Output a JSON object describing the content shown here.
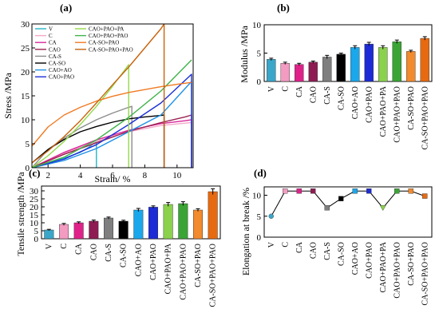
{
  "chart_data": [
    {
      "panel": "(a)",
      "type": "line",
      "xlabel": "Strain/ %",
      "ylabel": "Stress /MPa",
      "xlim": [
        1,
        11
      ],
      "ylim": [
        0,
        30
      ],
      "xticks": [
        2,
        4,
        6,
        8,
        10
      ],
      "yticks": [
        0,
        5,
        10,
        15,
        20,
        25,
        30
      ],
      "legend_placement": "top",
      "series": [
        {
          "name": "V",
          "color": "#25b5c4",
          "x": [
            1,
            2,
            3,
            4,
            4.5,
            5,
            5,
            5
          ],
          "y": [
            0,
            1.0,
            2.0,
            3.2,
            4.2,
            5.5,
            3,
            0
          ]
        },
        {
          "name": "C",
          "color": "#f4a8c8",
          "x": [
            1,
            3,
            5,
            7,
            9,
            10.5,
            10.9,
            10.9
          ],
          "y": [
            0,
            3.0,
            5.5,
            7.5,
            8.8,
            9.3,
            9.4,
            0
          ]
        },
        {
          "name": "CA",
          "color": "#d9289a",
          "x": [
            1,
            3,
            5,
            7,
            9,
            10.5,
            10.9,
            10.9
          ],
          "y": [
            0,
            3.2,
            5.8,
            7.8,
            9.2,
            9.8,
            10.0,
            0
          ]
        },
        {
          "name": "CAO",
          "color": "#9b2352",
          "x": [
            1,
            3,
            5,
            7,
            9,
            10.5,
            10.9,
            10.9
          ],
          "y": [
            0,
            2.8,
            5.2,
            7.6,
            9.4,
            10.6,
            11.0,
            0
          ]
        },
        {
          "name": "CA-S",
          "color": "#8c8c8c",
          "x": [
            1,
            2,
            3,
            4,
            5,
            6,
            7,
            7.2,
            7.2
          ],
          "y": [
            0,
            3.8,
            6.2,
            8.3,
            10.0,
            11.4,
            12.6,
            12.8,
            0
          ]
        },
        {
          "name": "CA-SO",
          "color": "#000000",
          "x": [
            1,
            2,
            3,
            4,
            5,
            6,
            7,
            8,
            9,
            9.2,
            9.2
          ],
          "y": [
            1,
            3.8,
            5.9,
            7.5,
            8.6,
            9.5,
            10.2,
            10.6,
            10.9,
            11.0,
            0
          ]
        },
        {
          "name": "CAO+AO",
          "color": "#1e90e6",
          "x": [
            1,
            3,
            5,
            7,
            9,
            10.9,
            10.9
          ],
          "y": [
            0,
            1.5,
            4.0,
            7.5,
            11.0,
            18.0,
            0
          ]
        },
        {
          "name": "CAO+PAO",
          "color": "#1a2fd8",
          "x": [
            1,
            3,
            5,
            7,
            9,
            10.9,
            10.9
          ],
          "y": [
            0,
            1.8,
            4.8,
            9.0,
            13.5,
            19.5,
            0
          ]
        },
        {
          "name": "CAO+PAO+PA",
          "color": "#93d84a",
          "x": [
            1,
            2,
            3,
            4,
            5,
            6,
            7,
            7,
            7
          ],
          "y": [
            0,
            2.5,
            5.5,
            9.0,
            12.8,
            17.0,
            21.5,
            10,
            0
          ]
        },
        {
          "name": "CAO+PAO+PAO",
          "color": "#3fb24a",
          "x": [
            1,
            3,
            5,
            7,
            9,
            10.9
          ],
          "y": [
            0,
            2.2,
            5.8,
            10.5,
            16.0,
            22.5
          ]
        },
        {
          "name": "CA-SO+PAO",
          "color": "#f07a22",
          "x": [
            1,
            2,
            3,
            4,
            5,
            6,
            7,
            8,
            9,
            10,
            10.9
          ],
          "y": [
            4.5,
            8.5,
            11.0,
            12.6,
            13.9,
            14.9,
            15.7,
            16.3,
            16.9,
            17.4,
            17.8
          ]
        },
        {
          "name": "CA-SO+PAO+PAO",
          "color": "#c8620c",
          "x": [
            1,
            2,
            3,
            4,
            5,
            6,
            7,
            8,
            9,
            9.2,
            9.2
          ],
          "y": [
            1,
            3.5,
            6.5,
            9.8,
            13.5,
            17.3,
            21.0,
            25.0,
            29.0,
            30.0,
            0
          ]
        }
      ]
    },
    {
      "panel": "(b)",
      "type": "bar",
      "ylabel": "Modulus /MPa",
      "ylim": [
        0,
        10
      ],
      "yticks": [
        0,
        5,
        10
      ],
      "categories": [
        "V",
        "C",
        "CA",
        "CAO",
        "CA-S",
        "CA-SO",
        "CAO+AO",
        "CAO+PAO",
        "CAO+PAO+PA",
        "CAO+PAO+PAO",
        "CA-SO+PAO",
        "CA-SO+PAO+PAO"
      ],
      "values": [
        3.9,
        3.2,
        3.0,
        3.4,
        4.3,
        4.8,
        6.0,
        6.6,
        6.0,
        7.0,
        5.3,
        7.6
      ],
      "errors": [
        0.2,
        0.2,
        0.2,
        0.2,
        0.3,
        0.2,
        0.3,
        0.3,
        0.3,
        0.3,
        0.2,
        0.3
      ],
      "colors": [
        "#3aa6c9",
        "#f39bc1",
        "#e0218a",
        "#8e1c53",
        "#7f7f7f",
        "#000000",
        "#1aa7ec",
        "#1c2bd6",
        "#8bd14e",
        "#3aa534",
        "#f28a2e",
        "#e86a10"
      ]
    },
    {
      "panel": "(c)",
      "type": "bar",
      "ylabel": "Tensile strength /MPa",
      "ylim": [
        0,
        33
      ],
      "yticks": [
        0,
        5,
        10,
        15,
        20,
        25,
        30
      ],
      "categories": [
        "V",
        "C",
        "CA",
        "CAO",
        "CA-S",
        "CA-SO",
        "CAO+AO",
        "CAO+PAO",
        "CAO+PAO+PA",
        "CAO+PAO+PAO",
        "CA-SO+PAO",
        "CA-SO+PAO+PAO"
      ],
      "values": [
        5.5,
        9.0,
        10.0,
        11.0,
        13.0,
        11.0,
        18.0,
        19.8,
        21.5,
        22.0,
        18.0,
        29.5
      ],
      "errors": [
        0.4,
        0.6,
        0.6,
        0.7,
        0.6,
        0.6,
        1.0,
        0.8,
        1.2,
        1.2,
        0.8,
        1.8
      ],
      "colors": [
        "#3aa6c9",
        "#f39bc1",
        "#e0218a",
        "#8e1c53",
        "#7f7f7f",
        "#000000",
        "#1aa7ec",
        "#1c2bd6",
        "#8bd14e",
        "#3aa534",
        "#f28a2e",
        "#e86a10"
      ]
    },
    {
      "panel": "(d)",
      "type": "line",
      "ylabel": "Elongation at break /%",
      "ylim": [
        0,
        12
      ],
      "yticks": [
        0,
        5,
        10
      ],
      "categories": [
        "V",
        "C",
        "CA",
        "CAO",
        "CA-S",
        "CA-SO",
        "CAO+AO",
        "CAO+PAO",
        "CAO+PAO+PA",
        "CAO+PAO+PAO",
        "CA-SO+PAO",
        "CA-SO+PAO+PAO"
      ],
      "values": [
        5.0,
        11.0,
        11.0,
        11.0,
        7.0,
        9.2,
        11.0,
        11.0,
        7.0,
        11.0,
        11.0,
        9.8
      ],
      "errors": [
        0.2,
        0.4,
        0.4,
        0.4,
        0.3,
        0.4,
        0.4,
        0.4,
        0.3,
        0.4,
        0.4,
        0.4
      ],
      "markers": [
        "circle",
        "square",
        "square",
        "square",
        "square",
        "square",
        "square",
        "square",
        "triangle-down",
        "square",
        "square",
        "square"
      ],
      "colors": [
        "#3aa6c9",
        "#f39bc1",
        "#e0218a",
        "#8e1c53",
        "#7f7f7f",
        "#000000",
        "#1aa7ec",
        "#1c2bd6",
        "#8bd14e",
        "#3aa534",
        "#f28a2e",
        "#e86a10"
      ]
    }
  ]
}
